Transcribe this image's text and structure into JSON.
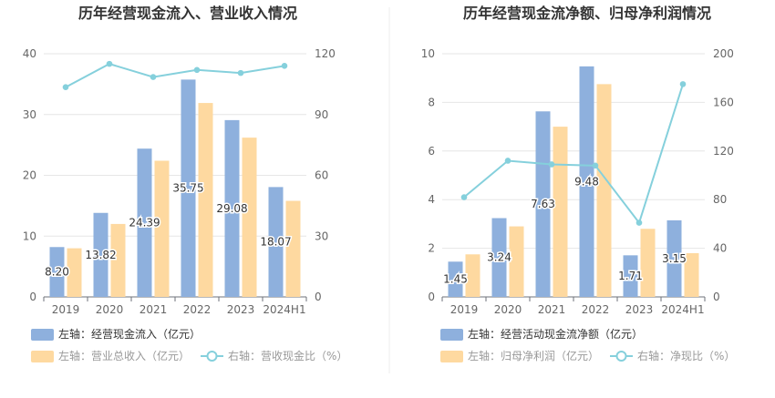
{
  "chart_data": [
    {
      "type": "bar",
      "title": "历年经营现金流入、营业收入情况",
      "categories": [
        "2019",
        "2020",
        "2021",
        "2022",
        "2023",
        "2024H1"
      ],
      "left_axis": {
        "min": 0,
        "max": 40,
        "ticks": [
          "0",
          "10",
          "20",
          "30",
          "40"
        ]
      },
      "right_axis": {
        "min": 0,
        "max": 120,
        "ticks": [
          "0",
          "30",
          "60",
          "90",
          "120"
        ]
      },
      "series": [
        {
          "name": "左轴：经营现金流入（亿元）",
          "kind": "bar",
          "axis": "left",
          "color": "#8EB0DD",
          "values": [
            8.2,
            13.82,
            24.39,
            35.75,
            29.08,
            18.07
          ],
          "labels": [
            "8.20",
            "13.82",
            "24.39",
            "35.75",
            "29.08",
            "18.07"
          ]
        },
        {
          "name": "左轴：营业总收入（亿元）",
          "kind": "bar",
          "axis": "left",
          "color": "#FED9A0",
          "values": [
            8.0,
            12.0,
            22.4,
            31.9,
            26.2,
            15.8
          ]
        },
        {
          "name": "右轴：营收现金比（%）",
          "kind": "line",
          "axis": "right",
          "color": "#85D0DC",
          "values": [
            103.5,
            115,
            108.5,
            112,
            110.5,
            114
          ]
        }
      ],
      "legend_rows": [
        [
          {
            "series": 0,
            "label": "左轴：经营现金流入（亿元）",
            "dim": false
          }
        ],
        [
          {
            "series": 1,
            "label": "左轴：营业总收入（亿元）",
            "dim": true
          },
          {
            "series": 2,
            "label": "右轴：营收现金比（%）",
            "dim": true
          }
        ]
      ]
    },
    {
      "type": "bar",
      "title": "历年经营现金流净额、归母净利润情况",
      "categories": [
        "2019",
        "2020",
        "2021",
        "2022",
        "2023",
        "2024H1"
      ],
      "left_axis": {
        "min": 0,
        "max": 10,
        "ticks": [
          "0",
          "2",
          "4",
          "6",
          "8",
          "10"
        ]
      },
      "right_axis": {
        "min": 0,
        "max": 200,
        "ticks": [
          "0",
          "40",
          "80",
          "120",
          "160",
          "200"
        ]
      },
      "series": [
        {
          "name": "左轴：经营活动现金流净额（亿元）",
          "kind": "bar",
          "axis": "left",
          "color": "#8EB0DD",
          "values": [
            1.45,
            3.24,
            7.63,
            9.48,
            1.71,
            3.15
          ],
          "labels": [
            "1.45",
            "3.24",
            "7.63",
            "9.48",
            "1.71",
            "3.15"
          ]
        },
        {
          "name": "左轴：归母净利润（亿元）",
          "kind": "bar",
          "axis": "left",
          "color": "#FED9A0",
          "values": [
            1.75,
            2.9,
            7.0,
            8.75,
            2.8,
            1.8
          ]
        },
        {
          "name": "右轴：净现比（%）",
          "kind": "line",
          "axis": "right",
          "color": "#85D0DC",
          "values": [
            82,
            112,
            109,
            108,
            61,
            175
          ]
        }
      ],
      "legend_rows": [
        [
          {
            "series": 0,
            "label": "左轴：经营活动现金流净额（亿元）",
            "dim": false
          }
        ],
        [
          {
            "series": 1,
            "label": "左轴：归母净利润（亿元）",
            "dim": true
          },
          {
            "series": 2,
            "label": "右轴：净现比（%）",
            "dim": true
          }
        ]
      ]
    }
  ]
}
